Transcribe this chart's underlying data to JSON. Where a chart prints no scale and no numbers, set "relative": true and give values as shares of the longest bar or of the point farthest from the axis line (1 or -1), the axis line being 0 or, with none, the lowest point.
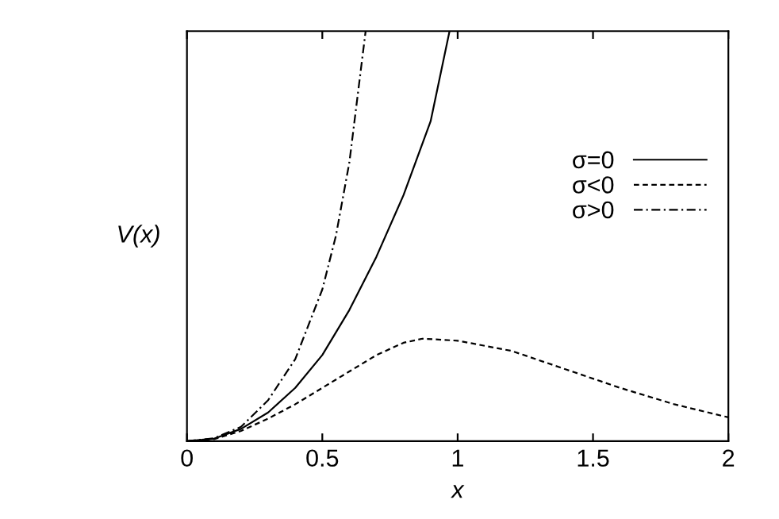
{
  "chart_data": {
    "type": "line",
    "relative": true,
    "xlabel": "x",
    "ylabel": "V(x)",
    "xlim": [
      0,
      2
    ],
    "xticks": [
      0,
      0.5,
      1,
      1.5,
      2
    ],
    "tick_labels": "x",
    "legend": "right",
    "grid": false,
    "marker": "none",
    "series": [
      {
        "name": "σ=0",
        "color": "#000000",
        "line_style": "solid",
        "x": [
          0,
          0.1,
          0.2,
          0.3,
          0.4,
          0.5,
          0.6,
          0.7,
          0.8,
          0.9,
          0.97
        ],
        "values": [
          0,
          0.006,
          0.03,
          0.07,
          0.13,
          0.21,
          0.32,
          0.45,
          0.6,
          0.78,
          1.0
        ]
      },
      {
        "name": "σ<0",
        "color": "#000000",
        "line_style": "dashed",
        "x": [
          0,
          0.1,
          0.2,
          0.3,
          0.4,
          0.5,
          0.6,
          0.7,
          0.8,
          0.87,
          1.0,
          1.2,
          1.4,
          1.6,
          1.8,
          2.0
        ],
        "values": [
          0,
          0.005,
          0.025,
          0.055,
          0.09,
          0.13,
          0.17,
          0.21,
          0.24,
          0.25,
          0.245,
          0.22,
          0.175,
          0.13,
          0.09,
          0.058
        ]
      },
      {
        "name": "σ>0",
        "color": "#000000",
        "line_style": "dashdot",
        "x": [
          0,
          0.1,
          0.2,
          0.3,
          0.4,
          0.5,
          0.55,
          0.6,
          0.66
        ],
        "values": [
          0,
          0.007,
          0.035,
          0.1,
          0.2,
          0.37,
          0.5,
          0.68,
          1.0
        ]
      }
    ]
  }
}
